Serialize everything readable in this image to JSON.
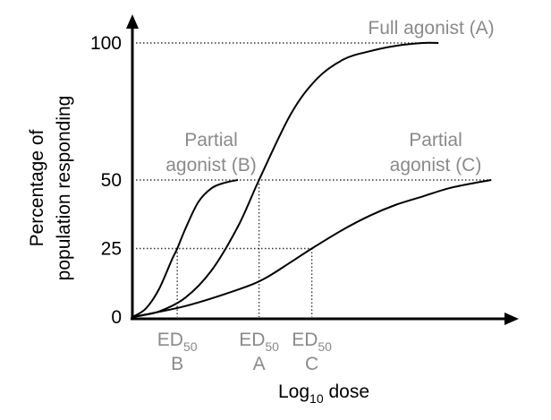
{
  "chart_data": {
    "type": "line",
    "xlabel": {
      "main": "Log",
      "sub": "10",
      "rest": " dose"
    },
    "ylabel": [
      "Percentage of",
      "population responding"
    ],
    "y_ticks": [
      "0",
      "25",
      "50",
      "100"
    ],
    "y_tick_values": [
      0,
      25,
      50,
      100
    ],
    "ylim": [
      0,
      100
    ],
    "x_range": [
      0,
      14
    ],
    "grid": false,
    "series": [
      {
        "key": "full",
        "label": "Full agonist (A)",
        "max": 100,
        "ed50": 4.8,
        "x_end": 11.6,
        "x": [
          0,
          1,
          2,
          3,
          4,
          4.8,
          6,
          7,
          8,
          9,
          10,
          11,
          11.6
        ],
        "y": [
          0,
          2,
          7,
          17,
          33,
          50,
          74,
          87,
          94,
          97,
          99,
          100,
          100
        ]
      },
      {
        "key": "partB",
        "label": [
          "Partial",
          "agonist (B)"
        ],
        "max": 50,
        "ed50": 1.7,
        "x_end": 4.0,
        "x": [
          0,
          0.5,
          1,
          1.5,
          1.7,
          2,
          2.5,
          3,
          3.5,
          4
        ],
        "y": [
          0,
          3,
          10,
          21,
          25,
          32,
          42,
          47,
          49,
          50
        ]
      },
      {
        "key": "partC",
        "label": [
          "Partial",
          "agonist (C)"
        ],
        "max": 50,
        "ed50": 6.8,
        "x_end": 13.6,
        "x": [
          0,
          2,
          4,
          5,
          6,
          6.8,
          8,
          9,
          10,
          11,
          12,
          13,
          13.6
        ],
        "y": [
          0,
          4,
          10,
          14,
          20,
          25,
          32,
          37,
          41,
          44,
          47,
          49,
          50
        ]
      }
    ],
    "ed50_labels": [
      {
        "series": "partB",
        "main": "ED",
        "sub": "50",
        "letter": "B"
      },
      {
        "series": "full",
        "main": "ED",
        "sub": "50",
        "letter": "A"
      },
      {
        "series": "partC",
        "main": "ED",
        "sub": "50",
        "letter": "C"
      }
    ]
  }
}
